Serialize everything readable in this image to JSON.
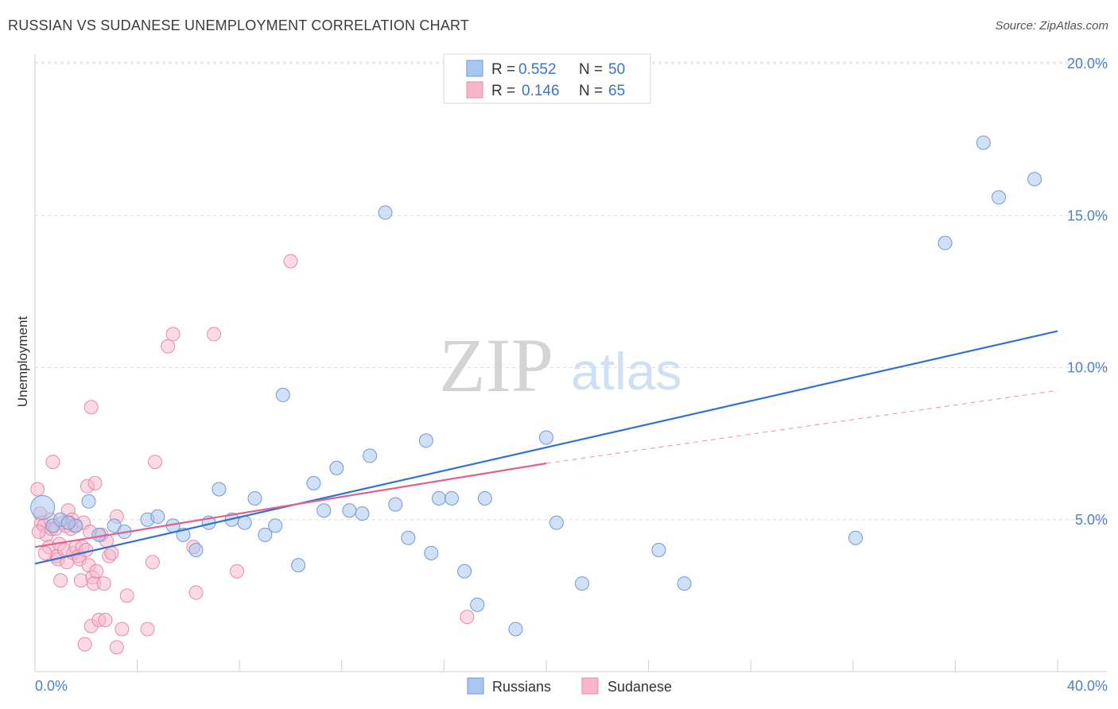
{
  "title": "RUSSIAN VS SUDANESE UNEMPLOYMENT CORRELATION CHART",
  "source": "Source: ZipAtlas.com",
  "watermark": {
    "zip": "ZIP",
    "atlas": "atlas"
  },
  "colors": {
    "blue_fill": "#a9c6ee",
    "blue_stroke": "#6f9ad8",
    "blue_line": "#2f72d0",
    "pink_fill": "#f7b6cb",
    "pink_stroke": "#e88aa6",
    "pink_line": "#e0608f",
    "tick": "#4a7fd0",
    "grid": "#dddddd"
  },
  "legend": {
    "rows": [
      {
        "r_label": "R =",
        "r_value": "0.552",
        "n_label": "N =",
        "n_value": "50"
      },
      {
        "r_label": "R =",
        "r_value": "0.146",
        "n_label": "N =",
        "n_value": "65"
      }
    ]
  },
  "chart_data": {
    "type": "scatter",
    "xlabel": "",
    "ylabel": "Unemployment",
    "xlim": [
      0,
      40
    ],
    "ylim": [
      0,
      20
    ],
    "x_tick_labels": [
      "0.0%",
      "40.0%"
    ],
    "y_ticks": [
      5,
      10,
      15,
      20
    ],
    "y_tick_labels": [
      "5.0%",
      "10.0%",
      "15.0%",
      "20.0%"
    ],
    "x_minor_ticks": [
      0,
      4,
      8,
      12,
      16,
      20,
      24,
      28,
      32,
      36,
      40
    ],
    "grid": true,
    "legend_position": "top-center",
    "series": [
      {
        "name": "Russians",
        "points": [
          [
            0.3,
            5.4
          ],
          [
            0.7,
            4.8
          ],
          [
            1.0,
            5.0
          ],
          [
            1.6,
            4.8
          ],
          [
            2.1,
            5.6
          ],
          [
            2.5,
            4.5
          ],
          [
            3.1,
            4.8
          ],
          [
            3.5,
            4.6
          ],
          [
            4.4,
            5.0
          ],
          [
            4.8,
            5.1
          ],
          [
            5.4,
            4.8
          ],
          [
            5.8,
            4.5
          ],
          [
            6.3,
            4.0
          ],
          [
            6.8,
            4.9
          ],
          [
            7.2,
            6.0
          ],
          [
            7.7,
            5.0
          ],
          [
            8.2,
            4.9
          ],
          [
            8.6,
            5.7
          ],
          [
            9.0,
            4.5
          ],
          [
            9.4,
            4.8
          ],
          [
            9.7,
            9.1
          ],
          [
            10.3,
            3.5
          ],
          [
            10.9,
            6.2
          ],
          [
            11.3,
            5.3
          ],
          [
            11.8,
            6.7
          ],
          [
            12.3,
            5.3
          ],
          [
            12.8,
            5.2
          ],
          [
            13.1,
            7.1
          ],
          [
            13.7,
            15.1
          ],
          [
            14.1,
            5.5
          ],
          [
            14.6,
            4.4
          ],
          [
            15.3,
            7.6
          ],
          [
            15.5,
            3.9
          ],
          [
            15.8,
            5.7
          ],
          [
            16.3,
            5.7
          ],
          [
            16.8,
            3.3
          ],
          [
            17.3,
            2.2
          ],
          [
            17.6,
            5.7
          ],
          [
            18.8,
            1.4
          ],
          [
            20.0,
            7.7
          ],
          [
            20.4,
            4.9
          ],
          [
            21.4,
            2.9
          ],
          [
            24.4,
            4.0
          ],
          [
            25.4,
            2.9
          ],
          [
            32.1,
            4.4
          ],
          [
            35.6,
            14.1
          ],
          [
            37.1,
            17.4
          ],
          [
            37.7,
            15.6
          ],
          [
            39.1,
            16.2
          ],
          [
            1.3,
            4.9
          ]
        ],
        "trend": {
          "x": [
            0,
            40
          ],
          "y": [
            3.55,
            11.2
          ]
        }
      },
      {
        "name": "Sudanese",
        "points": [
          [
            0.1,
            6.0
          ],
          [
            0.2,
            5.2
          ],
          [
            0.25,
            4.9
          ],
          [
            0.35,
            4.8
          ],
          [
            0.45,
            4.5
          ],
          [
            0.55,
            4.1
          ],
          [
            0.6,
            5.0
          ],
          [
            0.65,
            4.7
          ],
          [
            0.7,
            6.9
          ],
          [
            0.8,
            4.7
          ],
          [
            0.85,
            3.8
          ],
          [
            0.9,
            3.7
          ],
          [
            0.95,
            4.2
          ],
          [
            1.0,
            3.0
          ],
          [
            1.1,
            4.9
          ],
          [
            1.15,
            4.0
          ],
          [
            1.2,
            4.8
          ],
          [
            1.25,
            3.6
          ],
          [
            1.3,
            5.3
          ],
          [
            1.35,
            4.9
          ],
          [
            1.4,
            4.7
          ],
          [
            1.45,
            5.0
          ],
          [
            1.5,
            3.9
          ],
          [
            1.55,
            4.8
          ],
          [
            1.6,
            4.1
          ],
          [
            1.7,
            3.8
          ],
          [
            1.75,
            3.7
          ],
          [
            1.8,
            3.0
          ],
          [
            1.85,
            4.1
          ],
          [
            1.9,
            4.9
          ],
          [
            1.95,
            0.9
          ],
          [
            2.0,
            4.0
          ],
          [
            2.05,
            6.1
          ],
          [
            2.1,
            3.5
          ],
          [
            2.15,
            4.6
          ],
          [
            2.2,
            1.5
          ],
          [
            2.25,
            3.1
          ],
          [
            2.3,
            2.9
          ],
          [
            2.2,
            8.7
          ],
          [
            2.35,
            6.2
          ],
          [
            2.4,
            3.3
          ],
          [
            2.5,
            1.7
          ],
          [
            2.6,
            4.5
          ],
          [
            2.7,
            2.9
          ],
          [
            2.75,
            1.7
          ],
          [
            2.8,
            4.3
          ],
          [
            2.9,
            3.8
          ],
          [
            3.0,
            3.9
          ],
          [
            3.2,
            0.8
          ],
          [
            3.4,
            1.4
          ],
          [
            3.6,
            2.5
          ],
          [
            3.2,
            5.1
          ],
          [
            4.4,
            1.4
          ],
          [
            4.6,
            3.6
          ],
          [
            4.7,
            6.9
          ],
          [
            5.2,
            10.7
          ],
          [
            5.4,
            11.1
          ],
          [
            6.2,
            4.1
          ],
          [
            6.3,
            2.6
          ],
          [
            7.0,
            11.1
          ],
          [
            7.9,
            3.3
          ],
          [
            10.0,
            13.5
          ],
          [
            16.9,
            1.8
          ],
          [
            0.15,
            4.6
          ],
          [
            0.4,
            3.9
          ]
        ],
        "trend": {
          "x": [
            0,
            20
          ],
          "y": [
            4.1,
            6.85
          ]
        },
        "trend_dashed": {
          "x": [
            20,
            40
          ],
          "y": [
            6.85,
            9.25
          ]
        }
      }
    ]
  },
  "bottom_legend": [
    "Russians",
    "Sudanese"
  ]
}
